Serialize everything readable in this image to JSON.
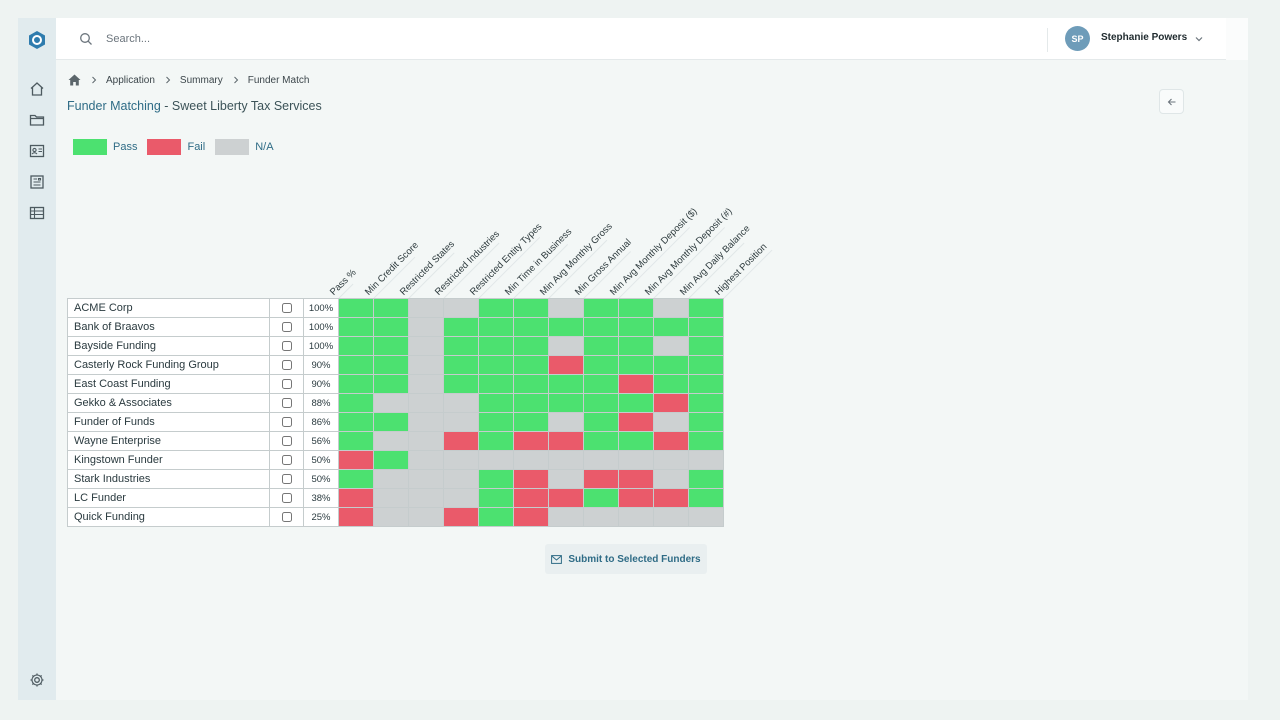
{
  "search": {
    "placeholder": "Search..."
  },
  "user": {
    "initials": "SP",
    "name": "Stephanie Powers"
  },
  "breadcrumb": {
    "items": [
      "Application",
      "Summary",
      "Funder Match"
    ]
  },
  "page": {
    "title_main": "Funder Matching",
    "title_separator": " - ",
    "title_sub": "Sweet Liberty Tax Services"
  },
  "legend": {
    "pass": "Pass",
    "fail": "Fail",
    "na": "N/A"
  },
  "colors": {
    "pass": "#4ce170",
    "fail": "#ea5a6a",
    "na": "#cdd1d2",
    "accent": "#2f6c86"
  },
  "columns": [
    "Pass %",
    "Min Credit Score",
    "Restricted States",
    "Restricted Industries",
    "Restricted Entity Types",
    "Min Time in Business",
    "Min Avg Monthly Gross",
    "Min Gross Annual",
    "Min Avg Monthly Deposit ($)",
    "Min Avg Monthly Deposit (#)",
    "Min Avg Daily Balance",
    "Highest Position"
  ],
  "funders": [
    {
      "name": "ACME Corp",
      "pass_pct": "100%",
      "results": [
        "P",
        "P",
        "N",
        "N",
        "P",
        "P",
        "N",
        "P",
        "P",
        "N",
        "P"
      ]
    },
    {
      "name": "Bank of Braavos",
      "pass_pct": "100%",
      "results": [
        "P",
        "P",
        "N",
        "P",
        "P",
        "P",
        "P",
        "P",
        "P",
        "P",
        "P"
      ]
    },
    {
      "name": "Bayside Funding",
      "pass_pct": "100%",
      "results": [
        "P",
        "P",
        "N",
        "P",
        "P",
        "P",
        "N",
        "P",
        "P",
        "N",
        "P"
      ]
    },
    {
      "name": "Casterly Rock Funding Group",
      "pass_pct": "90%",
      "results": [
        "P",
        "P",
        "N",
        "P",
        "P",
        "P",
        "F",
        "P",
        "P",
        "P",
        "P"
      ]
    },
    {
      "name": "East Coast Funding",
      "pass_pct": "90%",
      "results": [
        "P",
        "P",
        "N",
        "P",
        "P",
        "P",
        "P",
        "P",
        "F",
        "P",
        "P"
      ]
    },
    {
      "name": "Gekko & Associates",
      "pass_pct": "88%",
      "results": [
        "P",
        "N",
        "N",
        "N",
        "P",
        "P",
        "P",
        "P",
        "P",
        "F",
        "P"
      ]
    },
    {
      "name": "Funder of Funds",
      "pass_pct": "86%",
      "results": [
        "P",
        "P",
        "N",
        "N",
        "P",
        "P",
        "N",
        "P",
        "F",
        "N",
        "P"
      ]
    },
    {
      "name": "Wayne Enterprise",
      "pass_pct": "56%",
      "results": [
        "P",
        "N",
        "N",
        "F",
        "P",
        "F",
        "F",
        "P",
        "P",
        "F",
        "P"
      ]
    },
    {
      "name": "Kingstown Funder",
      "pass_pct": "50%",
      "results": [
        "F",
        "P",
        "N",
        "N",
        "N",
        "N",
        "N",
        "N",
        "N",
        "N",
        "N"
      ]
    },
    {
      "name": "Stark Industries",
      "pass_pct": "50%",
      "results": [
        "P",
        "N",
        "N",
        "N",
        "P",
        "F",
        "N",
        "F",
        "F",
        "N",
        "P"
      ]
    },
    {
      "name": "LC Funder",
      "pass_pct": "38%",
      "results": [
        "F",
        "N",
        "N",
        "N",
        "P",
        "F",
        "F",
        "P",
        "F",
        "F",
        "P"
      ]
    },
    {
      "name": "Quick Funding",
      "pass_pct": "25%",
      "results": [
        "F",
        "N",
        "N",
        "F",
        "P",
        "F",
        "N",
        "N",
        "N",
        "N",
        "N"
      ]
    }
  ],
  "submit": {
    "label": "Submit to Selected Funders"
  }
}
